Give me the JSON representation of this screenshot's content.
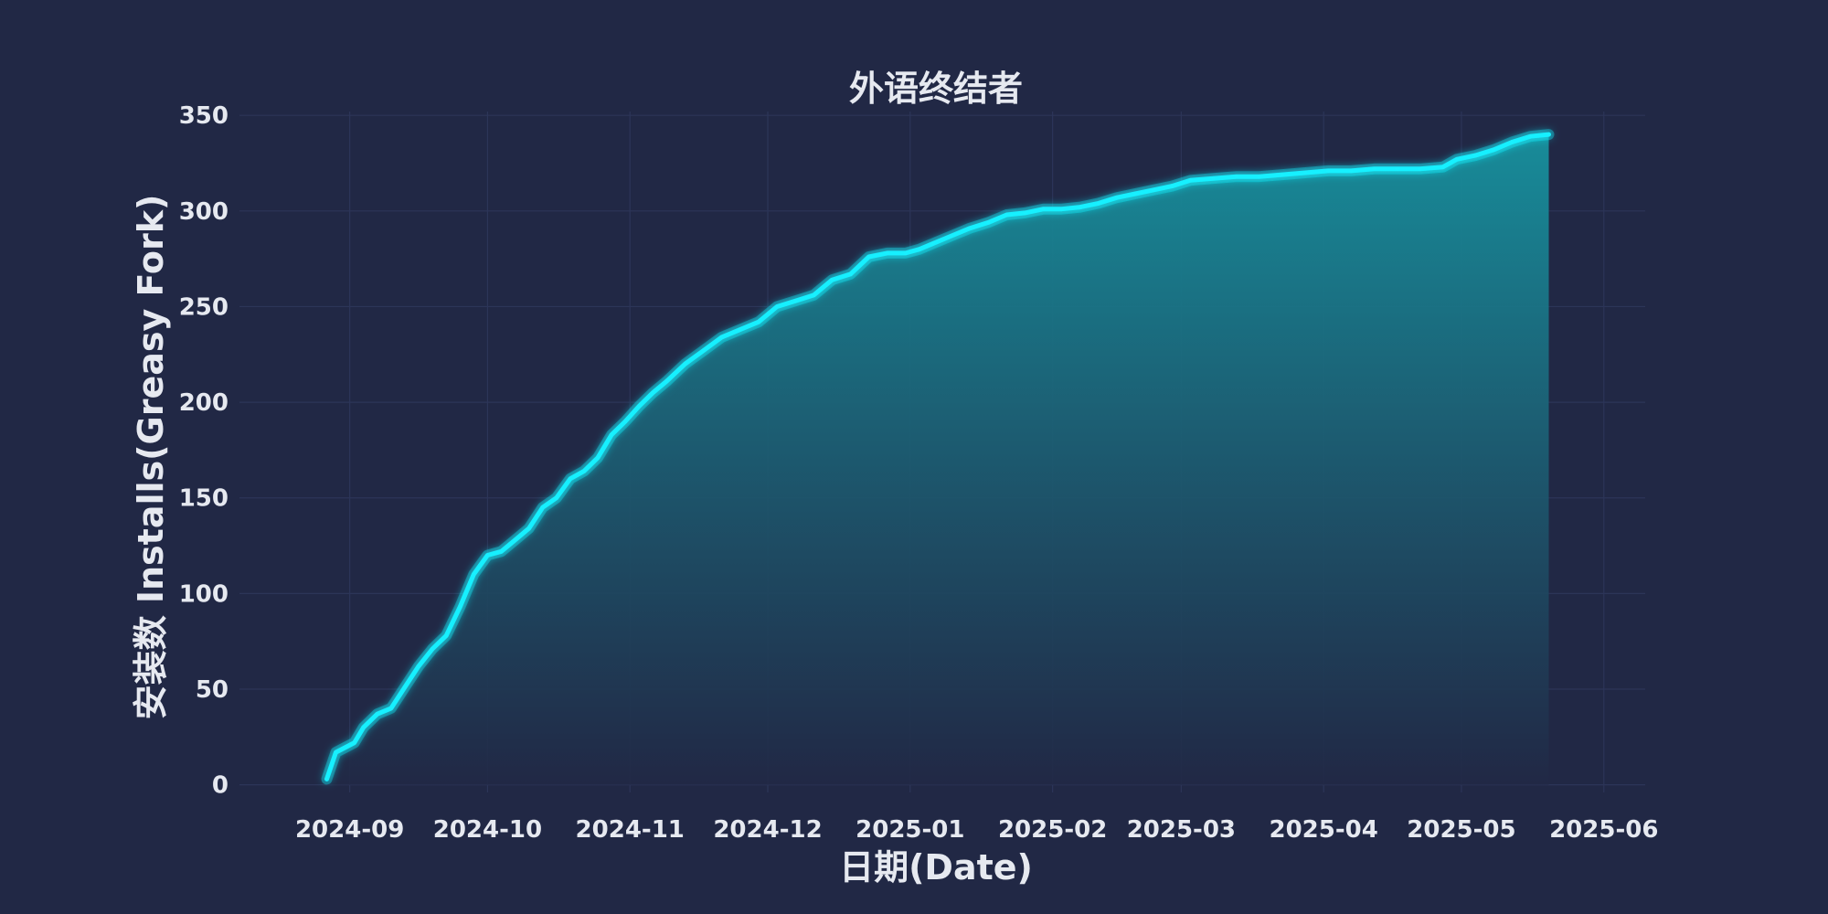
{
  "chart_data": {
    "type": "area",
    "title": "外语终结者",
    "xlabel": "日期(Date)",
    "ylabel": "安装数 Installs(Greasy Fork)",
    "x_type": "date",
    "xlim": [
      "2024-08-08",
      "2025-06-10"
    ],
    "ylim": [
      -4,
      352
    ],
    "y_ticks": [
      0,
      50,
      100,
      150,
      200,
      250,
      300,
      350
    ],
    "x_ticks": [
      "2024-09",
      "2024-10",
      "2024-11",
      "2024-12",
      "2025-01",
      "2025-02",
      "2025-03",
      "2025-04",
      "2025-05",
      "2025-06"
    ],
    "x_tick_dates": [
      "2024-09-01",
      "2024-10-01",
      "2024-11-01",
      "2024-12-01",
      "2025-01-01",
      "2025-02-01",
      "2025-03-01",
      "2025-04-01",
      "2025-05-01",
      "2025-06-01"
    ],
    "grid": true,
    "colors": {
      "background": "#212845",
      "line": "#19f0ff",
      "fill_top": "#17919e",
      "fill_bottom": "#212845",
      "grid": "#2c3558",
      "text": "#e6e9f0"
    },
    "series": [
      {
        "x": [
          "2024-08-27",
          "2024-08-29",
          "2024-09-02",
          "2024-09-04",
          "2024-09-07",
          "2024-09-10",
          "2024-09-13",
          "2024-09-16",
          "2024-09-19",
          "2024-09-22",
          "2024-09-25",
          "2024-09-28",
          "2024-10-01",
          "2024-10-04",
          "2024-10-07",
          "2024-10-10",
          "2024-10-13",
          "2024-10-16",
          "2024-10-19",
          "2024-10-22",
          "2024-10-25",
          "2024-10-28",
          "2024-10-31",
          "2024-11-03",
          "2024-11-06",
          "2024-11-09",
          "2024-11-13",
          "2024-11-17",
          "2024-11-21",
          "2024-11-25",
          "2024-11-29",
          "2024-12-03",
          "2024-12-07",
          "2024-12-11",
          "2024-12-15",
          "2024-12-19",
          "2024-12-23",
          "2024-12-27",
          "2024-12-31",
          "2025-01-03",
          "2025-01-06",
          "2025-01-10",
          "2025-01-14",
          "2025-01-18",
          "2025-01-22",
          "2025-01-26",
          "2025-01-30",
          "2025-02-03",
          "2025-02-07",
          "2025-02-11",
          "2025-02-15",
          "2025-02-19",
          "2025-02-23",
          "2025-02-27",
          "2025-03-03",
          "2025-03-08",
          "2025-03-13",
          "2025-03-18",
          "2025-03-23",
          "2025-03-28",
          "2025-04-02",
          "2025-04-07",
          "2025-04-12",
          "2025-04-17",
          "2025-04-22",
          "2025-04-27",
          "2025-04-30",
          "2025-05-04",
          "2025-05-08",
          "2025-05-12",
          "2025-05-16",
          "2025-05-20"
        ],
        "values": [
          3,
          17,
          22,
          30,
          37,
          40,
          51,
          62,
          71,
          78,
          93,
          110,
          120,
          122,
          128,
          134,
          145,
          150,
          160,
          164,
          171,
          183,
          190,
          198,
          205,
          211,
          220,
          227,
          234,
          238,
          242,
          250,
          253,
          256,
          264,
          267,
          276,
          278,
          278,
          280,
          283,
          287,
          291,
          294,
          298,
          299,
          301,
          301,
          302,
          304,
          307,
          309,
          311,
          313,
          316,
          317,
          318,
          318,
          319,
          320,
          321,
          321,
          322,
          322,
          322,
          323,
          327,
          329,
          332,
          336,
          339,
          340
        ]
      }
    ]
  }
}
